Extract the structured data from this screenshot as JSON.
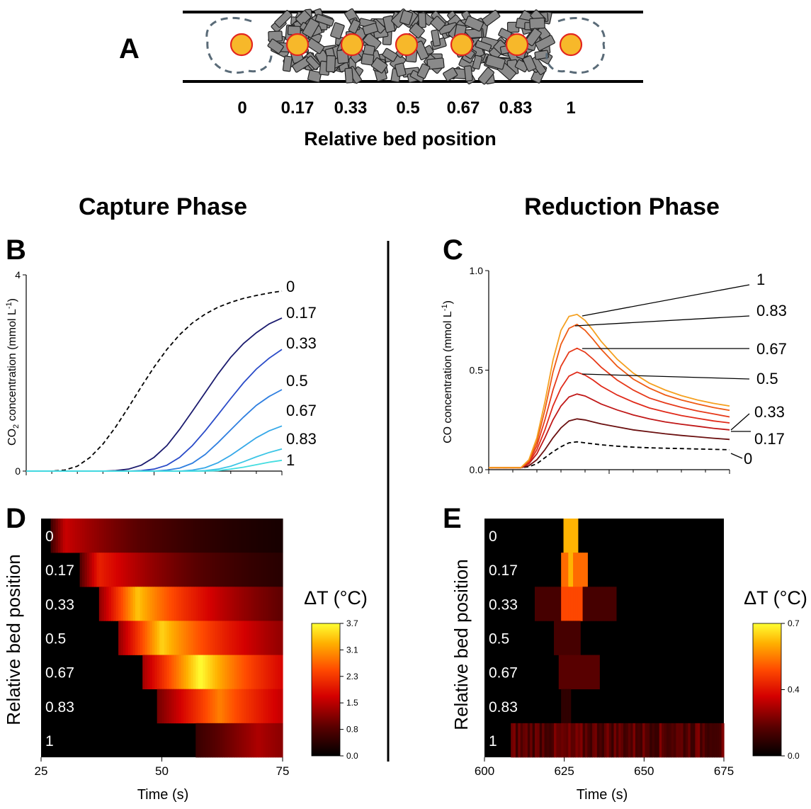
{
  "panel_letters": {
    "a": "A",
    "b": "B",
    "c": "C",
    "d": "D",
    "e": "E"
  },
  "panel_a": {
    "positions": [
      "0",
      "0.17",
      "0.33",
      "0.5",
      "0.67",
      "0.83",
      "1"
    ],
    "xlabel": "Relative bed position"
  },
  "phase_titles": {
    "capture": "Capture Phase",
    "reduction": "Reduction Phase"
  },
  "colors": {
    "capture_lines": [
      "#1b1b6e",
      "#2a4bc8",
      "#2f7fe0",
      "#35a8e8",
      "#3cc6e6",
      "#44dde0"
    ],
    "reduction_lines": [
      "#6b1010",
      "#c01818",
      "#e02a1a",
      "#e63a1a",
      "#ee5a14",
      "#f5a020"
    ],
    "particle_fill": "#f7b82a",
    "particle_stroke": "#e3261f",
    "block_fill": "#8a8a8a"
  },
  "chart_data": [
    {
      "id": "B",
      "type": "line",
      "xlabel": "",
      "ylabel": "CO2 concentration (mmol L-1)",
      "ylabel_parts": {
        "pre": "CO",
        "sub": "2",
        "mid": " concentration (mmol L",
        "sup": "-1",
        "post": ")"
      },
      "xlim": [
        25,
        75
      ],
      "ylim": [
        0,
        4
      ],
      "yticks": [
        "0",
        "4"
      ],
      "x": [
        25,
        27.5,
        30,
        32.5,
        35,
        37.5,
        40,
        42.5,
        45,
        47.5,
        50,
        52.5,
        55,
        57.5,
        60,
        62.5,
        65,
        67.5,
        70,
        72.5,
        75
      ],
      "series": [
        {
          "name": "0",
          "dashed": true,
          "values": [
            0,
            0,
            0,
            0.02,
            0.1,
            0.28,
            0.55,
            0.9,
            1.3,
            1.72,
            2.12,
            2.48,
            2.78,
            3.02,
            3.2,
            3.34,
            3.44,
            3.52,
            3.58,
            3.63,
            3.67
          ]
        },
        {
          "name": "0.17",
          "values": [
            0,
            0,
            0,
            0,
            0,
            0,
            0,
            0.01,
            0.04,
            0.12,
            0.28,
            0.52,
            0.85,
            1.22,
            1.6,
            1.98,
            2.32,
            2.6,
            2.82,
            3.0,
            3.12
          ]
        },
        {
          "name": "0.33",
          "values": [
            0,
            0,
            0,
            0,
            0,
            0,
            0,
            0,
            0,
            0.01,
            0.04,
            0.12,
            0.28,
            0.52,
            0.82,
            1.15,
            1.48,
            1.8,
            2.08,
            2.3,
            2.48
          ]
        },
        {
          "name": "0.5",
          "values": [
            0,
            0,
            0,
            0,
            0,
            0,
            0,
            0,
            0,
            0,
            0,
            0.02,
            0.06,
            0.16,
            0.34,
            0.58,
            0.84,
            1.1,
            1.34,
            1.52,
            1.66
          ]
        },
        {
          "name": "0.67",
          "values": [
            0,
            0,
            0,
            0,
            0,
            0,
            0,
            0,
            0,
            0,
            0,
            0,
            0,
            0.02,
            0.07,
            0.17,
            0.32,
            0.5,
            0.68,
            0.82,
            0.92
          ]
        },
        {
          "name": "0.83",
          "values": [
            0,
            0,
            0,
            0,
            0,
            0,
            0,
            0,
            0,
            0,
            0,
            0,
            0,
            0,
            0.01,
            0.04,
            0.1,
            0.19,
            0.29,
            0.38,
            0.45
          ]
        },
        {
          "name": "1",
          "values": [
            0,
            0,
            0,
            0,
            0,
            0,
            0,
            0,
            0,
            0,
            0,
            0,
            0,
            0,
            0,
            0.01,
            0.04,
            0.08,
            0.13,
            0.18,
            0.22
          ]
        }
      ]
    },
    {
      "id": "C",
      "type": "line",
      "xlabel": "",
      "ylabel": "CO concentration (mmol L-1)",
      "ylabel_parts": {
        "pre": "CO concentration (mmol L",
        "sup": "-1",
        "post": ")"
      },
      "xlim": [
        600,
        675
      ],
      "ylim": [
        0,
        1.0
      ],
      "yticks": [
        "0.0",
        "0.5",
        "1.0"
      ],
      "x": [
        600,
        605,
        610,
        612.5,
        615,
        617.5,
        620,
        622.5,
        625,
        627.5,
        630,
        632.5,
        635,
        640,
        645,
        650,
        655,
        660,
        665,
        670,
        675
      ],
      "series": [
        {
          "name": "0",
          "dashed": true,
          "values": [
            0.01,
            0.01,
            0.01,
            0.015,
            0.03,
            0.06,
            0.09,
            0.115,
            0.135,
            0.14,
            0.135,
            0.13,
            0.125,
            0.118,
            0.113,
            0.11,
            0.108,
            0.106,
            0.104,
            0.102,
            0.1
          ]
        },
        {
          "name": "0.17",
          "values": [
            0.01,
            0.01,
            0.01,
            0.02,
            0.05,
            0.1,
            0.16,
            0.21,
            0.245,
            0.255,
            0.25,
            0.24,
            0.23,
            0.215,
            0.2,
            0.19,
            0.18,
            0.172,
            0.165,
            0.158,
            0.152
          ]
        },
        {
          "name": "0.33",
          "values": [
            0.01,
            0.01,
            0.01,
            0.03,
            0.08,
            0.16,
            0.25,
            0.32,
            0.365,
            0.38,
            0.37,
            0.35,
            0.33,
            0.3,
            0.275,
            0.255,
            0.24,
            0.228,
            0.218,
            0.208,
            0.2
          ]
        },
        {
          "name": "0.5",
          "values": [
            0.01,
            0.01,
            0.01,
            0.035,
            0.1,
            0.2,
            0.32,
            0.41,
            0.47,
            0.49,
            0.475,
            0.45,
            0.42,
            0.375,
            0.34,
            0.31,
            0.29,
            0.272,
            0.258,
            0.245,
            0.235
          ]
        },
        {
          "name": "0.67",
          "values": [
            0.01,
            0.01,
            0.01,
            0.04,
            0.12,
            0.25,
            0.4,
            0.52,
            0.59,
            0.61,
            0.59,
            0.555,
            0.515,
            0.45,
            0.4,
            0.36,
            0.335,
            0.313,
            0.295,
            0.28,
            0.265
          ]
        },
        {
          "name": "0.83",
          "values": [
            0.01,
            0.01,
            0.01,
            0.045,
            0.14,
            0.3,
            0.49,
            0.63,
            0.71,
            0.73,
            0.7,
            0.655,
            0.605,
            0.52,
            0.455,
            0.41,
            0.375,
            0.35,
            0.33,
            0.312,
            0.298
          ]
        },
        {
          "name": "1",
          "values": [
            0.01,
            0.01,
            0.01,
            0.05,
            0.16,
            0.34,
            0.55,
            0.7,
            0.77,
            0.78,
            0.75,
            0.7,
            0.645,
            0.555,
            0.485,
            0.435,
            0.4,
            0.372,
            0.35,
            0.333,
            0.32
          ]
        }
      ]
    },
    {
      "id": "D",
      "type": "heatmap",
      "xlabel": "Time (s)",
      "ylabel": "Relative bed position",
      "xlim": [
        25,
        75
      ],
      "xticks": [
        "25",
        "50",
        "75"
      ],
      "rows": [
        "0",
        "0.17",
        "0.33",
        "0.5",
        "0.67",
        "0.83",
        "1"
      ],
      "colorbar": {
        "title": "ΔT (°C)",
        "ticks": [
          "3.7",
          "3.1",
          "2.3",
          "1.5",
          "0.8",
          "0.0"
        ],
        "range": [
          0,
          3.7
        ]
      },
      "row_profiles": [
        {
          "onset": 27,
          "peak_t": 30,
          "peak": 1.6,
          "decay": 22
        },
        {
          "onset": 33,
          "peak_t": 37,
          "peak": 2.0,
          "decay": 22
        },
        {
          "onset": 37,
          "peak_t": 45,
          "peak": 3.3,
          "decay": 22
        },
        {
          "onset": 41,
          "peak_t": 50,
          "peak": 3.4,
          "decay": 24
        },
        {
          "onset": 46,
          "peak_t": 58,
          "peak": 3.7,
          "decay": 22
        },
        {
          "onset": 49,
          "peak_t": 62,
          "peak": 2.8,
          "decay": 22
        },
        {
          "onset": 57,
          "peak_t": 70,
          "peak": 1.4,
          "decay": 25
        }
      ]
    },
    {
      "id": "E",
      "type": "heatmap",
      "xlabel": "Time (s)",
      "ylabel": "Relative bed position",
      "xlim": [
        600,
        675
      ],
      "xticks": [
        "600",
        "625",
        "650",
        "675"
      ],
      "rows": [
        "0",
        "0.17",
        "0.33",
        "0.5",
        "0.67",
        "0.83",
        "1"
      ],
      "colorbar": {
        "title": "ΔT (°C)",
        "ticks": [
          "0.7",
          "0.4",
          "0.0"
        ],
        "range": [
          0,
          0.7
        ]
      },
      "row_profiles": [
        {
          "bands": [
            [
              624.5,
              629.5,
              0.6
            ]
          ]
        },
        {
          "bands": [
            [
              624,
              632,
              0.5
            ],
            [
              626,
              628,
              0.6
            ]
          ]
        },
        {
          "bands": [
            [
              616,
              641,
              0.12
            ],
            [
              624,
              631,
              0.45
            ]
          ]
        },
        {
          "bands": [
            [
              622,
              630,
              0.12
            ]
          ]
        },
        {
          "bands": [
            [
              623,
              636,
              0.15
            ]
          ]
        },
        {
          "bands": [
            [
              624,
              627,
              0.08
            ]
          ]
        },
        {
          "bands": [
            [
              608,
              675,
              0.15
            ]
          ],
          "noisy": true
        }
      ]
    }
  ]
}
